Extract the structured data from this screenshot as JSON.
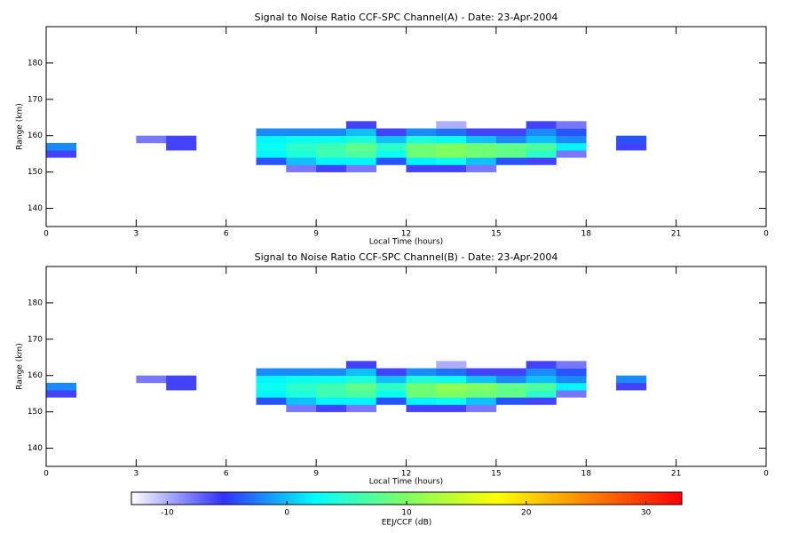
{
  "chart_data": [
    {
      "type": "heatmap",
      "title": "Signal to Noise Ratio CCF-SPC Channel(A) - Date: 23-Apr-2004",
      "xlabel": "Local Time (hours)",
      "ylabel": "Range (km)",
      "xbins": [
        0,
        1,
        2,
        3,
        4,
        5,
        6,
        7,
        8,
        9,
        10,
        11,
        12,
        13,
        14,
        15,
        16,
        17,
        18,
        19,
        20,
        21,
        22,
        23,
        24
      ],
      "ybins": [
        150,
        152,
        154,
        156,
        158,
        160,
        162,
        164
      ],
      "values": [
        [
          null,
          null,
          null,
          null,
          null,
          null,
          null,
          null,
          -8,
          -6,
          -8,
          null,
          -6,
          -6,
          -8,
          null,
          null,
          null,
          null,
          null,
          null,
          null,
          null,
          null
        ],
        [
          null,
          null,
          null,
          null,
          null,
          null,
          null,
          -4,
          0,
          2,
          2,
          -4,
          2,
          3,
          0,
          -4,
          -6,
          null,
          null,
          null,
          null,
          null,
          null,
          null
        ],
        [
          -6,
          null,
          null,
          null,
          null,
          null,
          null,
          2,
          4,
          6,
          7,
          3,
          9,
          10,
          9,
          8,
          5,
          -8,
          null,
          null,
          null,
          null,
          null,
          null
        ],
        [
          -2,
          null,
          null,
          null,
          -6,
          null,
          null,
          3,
          5,
          6,
          8,
          5,
          9,
          10,
          9,
          8,
          7,
          2,
          null,
          -6,
          null,
          null,
          null,
          null
        ],
        [
          null,
          null,
          null,
          -8,
          -6,
          null,
          null,
          2,
          3,
          3,
          4,
          0,
          4,
          3,
          0,
          -2,
          0,
          -2,
          null,
          -4,
          null,
          null,
          null,
          null
        ],
        [
          null,
          null,
          null,
          null,
          null,
          null,
          null,
          -2,
          -2,
          -2,
          0,
          -6,
          -2,
          -3,
          -6,
          -6,
          -2,
          -4,
          null,
          null,
          null,
          null,
          null,
          null
        ],
        [
          null,
          null,
          null,
          null,
          null,
          null,
          null,
          null,
          null,
          null,
          -6,
          null,
          null,
          -10,
          null,
          null,
          -6,
          -8,
          null,
          null,
          null,
          null,
          null,
          null
        ]
      ],
      "xlim": [
        0,
        24
      ],
      "ylim": [
        135,
        190
      ],
      "xticks": [
        0,
        3,
        6,
        9,
        12,
        15,
        18,
        21,
        {
          "value": 24,
          "label": "0"
        }
      ],
      "yticks": [
        140,
        150,
        160,
        170,
        180
      ]
    },
    {
      "type": "heatmap",
      "title": "Signal to Noise Ratio CCF-SPC Channel(B) - Date: 23-Apr-2004",
      "xlabel": "Local Time (hours)",
      "ylabel": "Range (km)",
      "xbins": [
        0,
        1,
        2,
        3,
        4,
        5,
        6,
        7,
        8,
        9,
        10,
        11,
        12,
        13,
        14,
        15,
        16,
        17,
        18,
        19,
        20,
        21,
        22,
        23,
        24
      ],
      "ybins": [
        150,
        152,
        154,
        156,
        158,
        160,
        162,
        164
      ],
      "values": [
        [
          null,
          null,
          null,
          null,
          null,
          null,
          null,
          null,
          -8,
          -6,
          -8,
          null,
          -6,
          -6,
          -8,
          null,
          null,
          null,
          null,
          null,
          null,
          null,
          null,
          null
        ],
        [
          null,
          null,
          null,
          null,
          null,
          null,
          null,
          -4,
          0,
          2,
          2,
          -4,
          2,
          3,
          0,
          -4,
          -6,
          null,
          null,
          null,
          null,
          null,
          null,
          null
        ],
        [
          -6,
          null,
          null,
          null,
          null,
          null,
          null,
          2,
          4,
          6,
          7,
          3,
          9,
          10,
          9,
          8,
          5,
          -8,
          null,
          null,
          null,
          null,
          null,
          null
        ],
        [
          -2,
          null,
          null,
          null,
          -6,
          null,
          null,
          3,
          5,
          6,
          8,
          5,
          9,
          11,
          10,
          8,
          7,
          2,
          null,
          -6,
          null,
          null,
          null,
          null
        ],
        [
          null,
          null,
          null,
          -8,
          -6,
          null,
          null,
          2,
          3,
          3,
          4,
          0,
          4,
          3,
          0,
          -2,
          0,
          -2,
          null,
          -2,
          null,
          null,
          null,
          null
        ],
        [
          null,
          null,
          null,
          null,
          null,
          null,
          null,
          -2,
          -2,
          -2,
          0,
          -6,
          -2,
          -3,
          -6,
          -6,
          -2,
          -4,
          null,
          null,
          null,
          null,
          null,
          null
        ],
        [
          null,
          null,
          null,
          null,
          null,
          null,
          null,
          null,
          null,
          null,
          -6,
          null,
          null,
          -10,
          null,
          null,
          -6,
          -8,
          null,
          null,
          null,
          null,
          null,
          null
        ]
      ],
      "xlim": [
        0,
        24
      ],
      "ylim": [
        135,
        190
      ],
      "xticks": [
        0,
        3,
        6,
        9,
        12,
        15,
        18,
        21,
        {
          "value": 24,
          "label": "0"
        }
      ],
      "yticks": [
        140,
        150,
        160,
        170,
        180
      ]
    }
  ],
  "colorbar": {
    "label": "EEJ/CCF (dB)",
    "clim": [
      -13,
      33
    ],
    "ticks": [
      -10,
      0,
      10,
      20,
      30
    ],
    "colorscale": [
      "#ffffff",
      "#3030ff",
      "#00ffff",
      "#80ff60",
      "#ffff00",
      "#ff8000",
      "#ff0000"
    ]
  }
}
